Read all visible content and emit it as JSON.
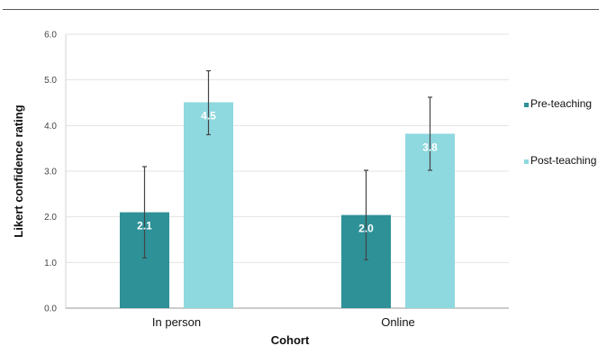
{
  "chart_data": {
    "type": "bar",
    "title": "",
    "xlabel": "Cohort",
    "ylabel": "Likert confidence rating",
    "categories": [
      "In person",
      "Online"
    ],
    "ylim": [
      0,
      6
    ],
    "yticks": [
      "0.0",
      "1.0",
      "2.0",
      "3.0",
      "4.0",
      "5.0",
      "6.0"
    ],
    "grid": true,
    "legend_position": "right",
    "series": [
      {
        "name": "Pre-teaching",
        "color": "#2e9198",
        "values": [
          2.1,
          2.04
        ],
        "labels": [
          "2.1",
          "2.0"
        ],
        "error_low": [
          1.1,
          1.06
        ],
        "error_high": [
          3.1,
          3.02
        ]
      },
      {
        "name": "Post-teaching",
        "color": "#8ed8df",
        "values": [
          4.51,
          3.82
        ],
        "labels": [
          "4.5",
          "3.8"
        ],
        "error_low": [
          3.8,
          3.02
        ],
        "error_high": [
          5.2,
          4.62
        ]
      }
    ]
  }
}
